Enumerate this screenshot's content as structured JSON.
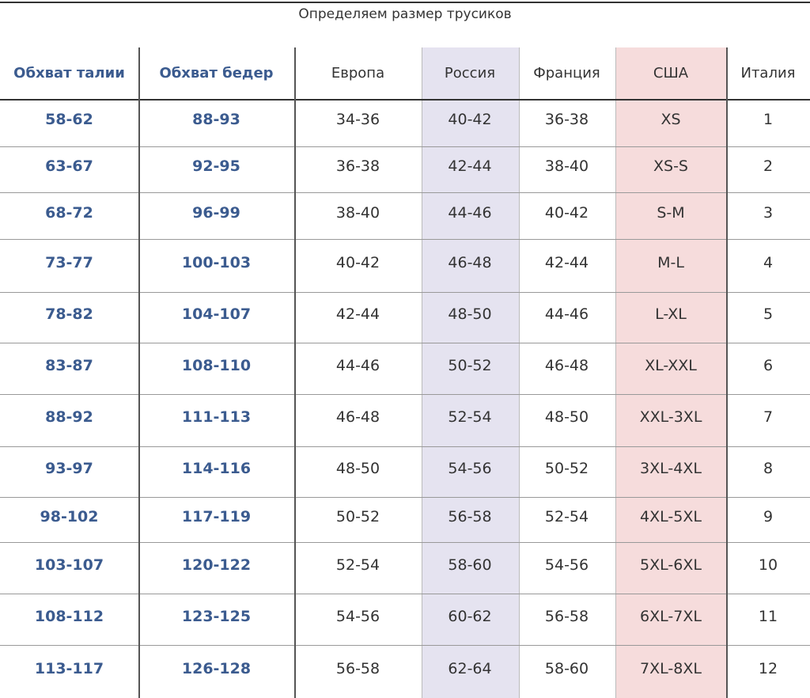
{
  "title": "Определяем размер трусиков",
  "table": {
    "columns": [
      "Обхват талии",
      "Обхват бедер",
      "Европа",
      "Россия",
      "Франция",
      "США",
      "Италия"
    ],
    "rows": [
      [
        "58-62",
        "88-93",
        "34-36",
        "40-42",
        "36-38",
        "XS",
        "1"
      ],
      [
        "63-67",
        "92-95",
        "36-38",
        "42-44",
        "38-40",
        "XS-S",
        "2"
      ],
      [
        "68-72",
        "96-99",
        "38-40",
        "44-46",
        "40-42",
        "S-M",
        "3"
      ],
      [
        "73-77",
        "100-103",
        "40-42",
        "46-48",
        "42-44",
        "M-L",
        "4"
      ],
      [
        "78-82",
        "104-107",
        "42-44",
        "48-50",
        "44-46",
        "L-XL",
        "5"
      ],
      [
        "83-87",
        "108-110",
        "44-46",
        "50-52",
        "46-48",
        "XL-XXL",
        "6"
      ],
      [
        "88-92",
        "111-113",
        "46-48",
        "52-54",
        "48-50",
        "XXL-3XL",
        "7"
      ],
      [
        "93-97",
        "114-116",
        "48-50",
        "54-56",
        "50-52",
        "3XL-4XL",
        "8"
      ],
      [
        "98-102",
        "117-119",
        "50-52",
        "56-58",
        "52-54",
        "4XL-5XL",
        "9"
      ],
      [
        "103-107",
        "120-122",
        "52-54",
        "58-60",
        "54-56",
        "5XL-6XL",
        "10"
      ],
      [
        "108-112",
        "123-125",
        "54-56",
        "60-62",
        "56-58",
        "6XL-7XL",
        "11"
      ],
      [
        "113-117",
        "126-128",
        "56-58",
        "62-64",
        "58-60",
        "7XL-8XL",
        "12"
      ]
    ]
  }
}
